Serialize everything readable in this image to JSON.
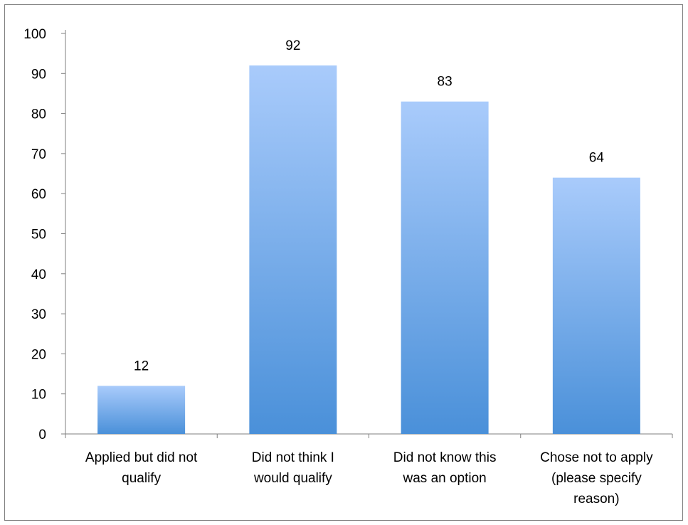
{
  "chart_data": {
    "type": "bar",
    "categories": [
      [
        "Applied but did not",
        "qualify"
      ],
      [
        "Did not think I",
        "would qualify"
      ],
      [
        "Did not know this",
        "was an option"
      ],
      [
        "Chose not to apply",
        "(please specify",
        "reason)"
      ]
    ],
    "values": [
      12,
      92,
      83,
      64
    ],
    "data_labels": [
      "12",
      "92",
      "83",
      "64"
    ],
    "ylim": [
      0,
      100
    ],
    "yticks": [
      0,
      10,
      20,
      30,
      40,
      50,
      60,
      70,
      80,
      90,
      100
    ],
    "ytick_labels": [
      "0",
      "10",
      "20",
      "30",
      "40",
      "50",
      "60",
      "70",
      "80",
      "90",
      "100"
    ],
    "grid": false,
    "legend": "none",
    "bar_colors": {
      "top": "#a9cbfb",
      "bottom": "#4a90d9"
    },
    "axis_color": "#7f7f7f"
  }
}
